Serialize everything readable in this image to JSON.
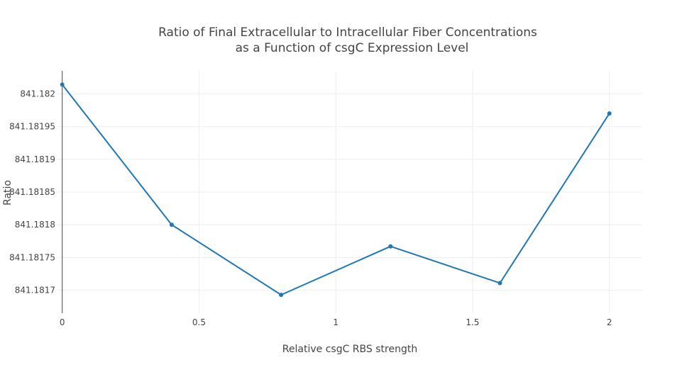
{
  "chart_data": {
    "type": "line",
    "title_lines": [
      "Ratio of Final Extracellular to Intracellular Fiber Concentrations",
      "as a Function of csgC Expression Level"
    ],
    "xlabel": "Relative csgC RBS strength",
    "ylabel": "Ratio",
    "xlim": [
      -0.02,
      2.12
    ],
    "ylim": [
      841.181665,
      841.182035
    ],
    "x_ticks": [
      0,
      0.5,
      1,
      1.5,
      2
    ],
    "x_tick_labels": [
      "0",
      "0.5",
      "1",
      "1.5",
      "2"
    ],
    "y_ticks": [
      841.1817,
      841.18175,
      841.1818,
      841.18185,
      841.1819,
      841.18195,
      841.182
    ],
    "y_tick_labels": [
      "841.1817",
      "841.18175",
      "841.1818",
      "841.18185",
      "841.1819",
      "841.18195",
      "841.182"
    ],
    "grid": true,
    "series": [
      {
        "color": "#1f77b4",
        "x": [
          0,
          0.4,
          0.8,
          1.2,
          1.6,
          2.0
        ],
        "y": [
          841.182014,
          841.1818,
          841.181693,
          841.181767,
          841.181711,
          841.18197
        ]
      }
    ]
  }
}
